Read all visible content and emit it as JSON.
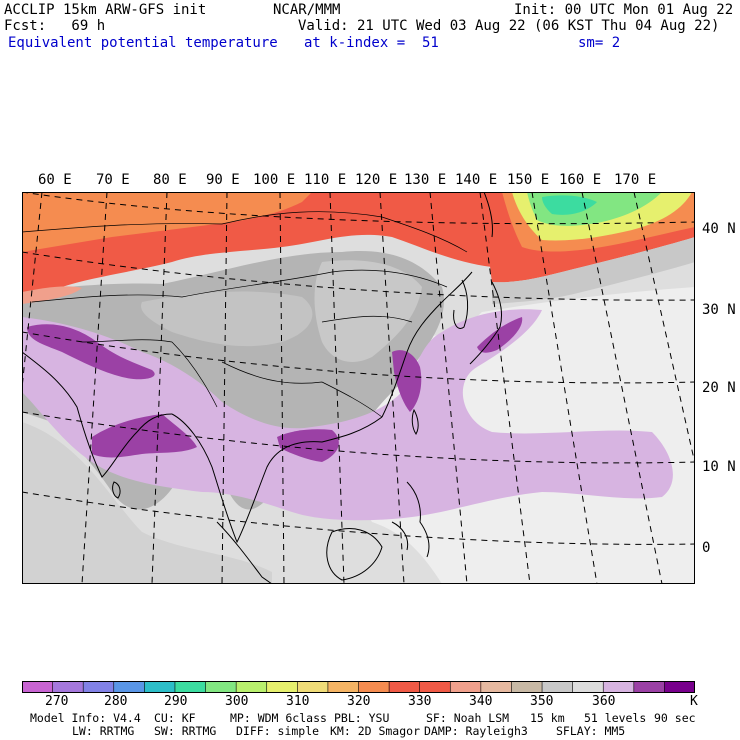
{
  "header": {
    "line1_left": "ACCLIP 15km ARW-GFS init",
    "line1_mid": "NCAR/MMM",
    "line1_right": "Init: 00 UTC Mon 01 Aug 22",
    "line2_left": "Fcst:   69 h",
    "line2_right": "Valid: 21 UTC Wed 03 Aug 22 (06 KST Thu 04 Aug 22)",
    "line3_left": "Equivalent potential temperature",
    "line3_mid": "at k-index =  51",
    "line3_right": "sm= 2"
  },
  "map": {
    "lon_labels": [
      "60 E",
      "70 E",
      "80 E",
      "90 E",
      "100 E",
      "110 E",
      "120 E",
      "130 E",
      "140 E",
      "150 E",
      "160 E",
      "170 E"
    ],
    "lat_labels": [
      "40 N",
      "30 N",
      "20 N",
      "10 N",
      "0"
    ],
    "colors": {
      "land_gray": "#b4b4b4",
      "ocean_lightgray": "#d7d7d7",
      "very_light": "#eeeeee",
      "light_purple": "#d7b4e1",
      "purple": "#9b41a5",
      "dark_purple": "#78008c",
      "red": "#f05a46",
      "orange": "#f58c50",
      "yellow": "#e6f06e",
      "green": "#82e682",
      "teal": "#3cdca0"
    }
  },
  "colorbar": {
    "colors": [
      "#c864d2",
      "#a578dc",
      "#8282e6",
      "#5a96e6",
      "#2dbec8",
      "#3cdca0",
      "#82e682",
      "#b9f06e",
      "#e6f06e",
      "#f0dc78",
      "#f5b464",
      "#f58c50",
      "#f05a46",
      "#f05a46",
      "#f0a08c",
      "#e6b9a0",
      "#c8b9a5",
      "#c8c8c8",
      "#dcdcdc",
      "#d7b4e1",
      "#9b41a5",
      "#78008c"
    ],
    "labels": [
      "270",
      "280",
      "290",
      "300",
      "310",
      "320",
      "330",
      "340",
      "350",
      "360"
    ],
    "unit": "K"
  },
  "footer": {
    "row1": [
      "Model Info: V4.4",
      "CU: KF",
      "MP: WDM 6class",
      "PBL: YSU",
      "SF: Noah LSM",
      "15 km",
      "51 levels",
      "90 sec"
    ],
    "row2": [
      "LW: RRTMG",
      "SW: RRTMG",
      "DIFF: simple",
      "KM: 2D Smagor",
      "DAMP: Rayleigh3",
      "SFLAY: MM5"
    ]
  }
}
